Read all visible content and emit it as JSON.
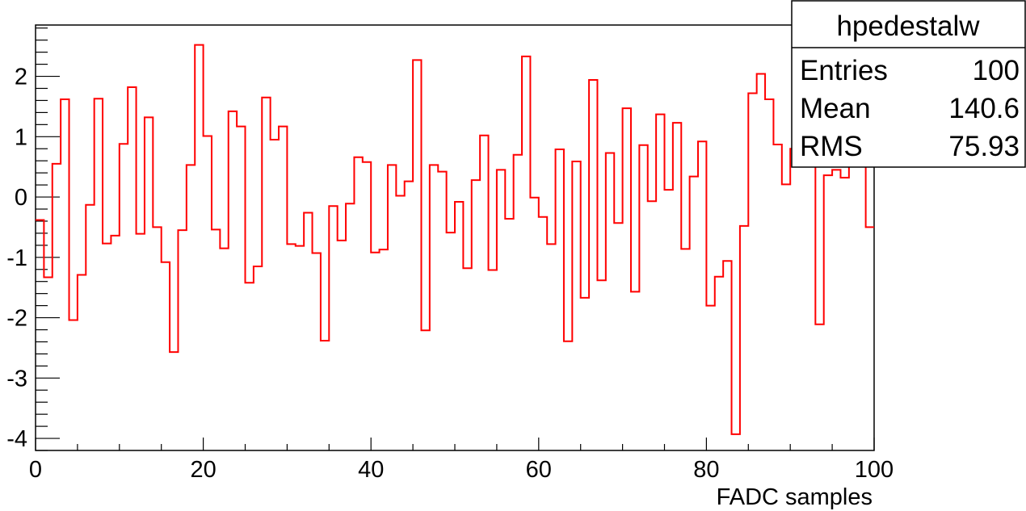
{
  "chart_data": {
    "type": "line",
    "style": "step-histogram",
    "xlabel": "FADC samples",
    "ylabel": "",
    "xlim": [
      0,
      100
    ],
    "ylim": [
      -4.2,
      2.85
    ],
    "x_ticks": [
      0,
      20,
      40,
      60,
      80,
      100
    ],
    "y_ticks": [
      -4,
      -3,
      -2,
      -1,
      0,
      1,
      2
    ],
    "grid": false,
    "line_color": "#ff0000",
    "values": [
      -0.38,
      -1.33,
      0.55,
      1.62,
      -2.04,
      -1.29,
      -0.13,
      1.63,
      -0.77,
      -0.64,
      0.88,
      1.82,
      -0.61,
      1.32,
      -0.5,
      -1.08,
      -2.57,
      -0.55,
      0.53,
      2.52,
      1.01,
      -0.54,
      -0.85,
      1.42,
      1.17,
      -1.42,
      -1.15,
      1.65,
      0.95,
      1.17,
      -0.78,
      -0.81,
      -0.26,
      -0.93,
      -2.38,
      -0.15,
      -0.72,
      -0.11,
      0.66,
      0.58,
      -0.92,
      -0.87,
      0.53,
      0.02,
      0.26,
      2.27,
      -2.21,
      0.53,
      0.42,
      -0.59,
      -0.08,
      -1.18,
      0.28,
      1.02,
      -1.21,
      0.45,
      -0.36,
      0.7,
      2.33,
      -0.01,
      -0.33,
      -0.78,
      0.79,
      -2.39,
      0.59,
      -1.67,
      1.94,
      -1.38,
      0.73,
      -0.43,
      1.47,
      -1.57,
      0.86,
      -0.07,
      1.37,
      0.12,
      1.23,
      -0.86,
      0.34,
      0.92,
      -1.8,
      -1.32,
      -1.06,
      -3.93,
      -0.48,
      1.72,
      2.04,
      1.62,
      0.87,
      0.21,
      0.8,
      1.45,
      1.3,
      -2.11,
      0.36,
      0.45,
      0.32,
      1.1,
      1.46,
      -0.5
    ]
  },
  "stats_box": {
    "title": "hpedestalw",
    "rows": [
      {
        "label": "Entries",
        "value": "100"
      },
      {
        "label": "Mean",
        "value": "140.6"
      },
      {
        "label": "RMS",
        "value": "75.93"
      }
    ]
  }
}
